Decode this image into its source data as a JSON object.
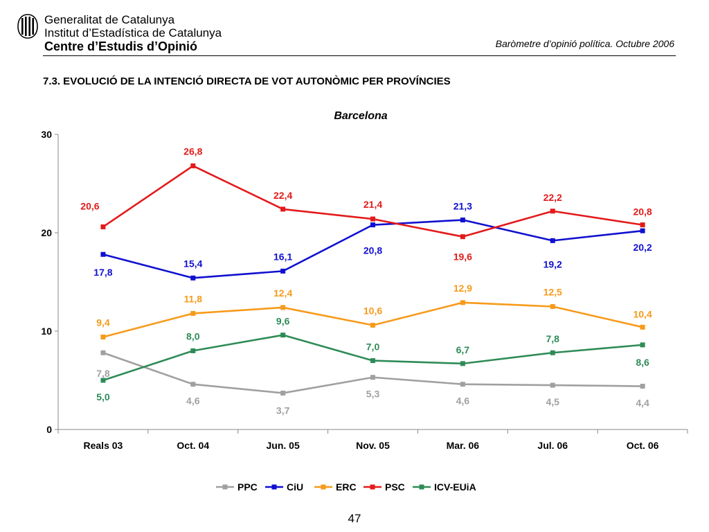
{
  "header": {
    "org_line_1": "Generalitat de Catalunya",
    "org_line_2": "Institut d’Estadística de Catalunya",
    "org_line_3": "Centre d’Estudis d’Opinió",
    "report_title": "Baròmetre d’opinió política. Octubre 2006"
  },
  "section_title": "7.3. EVOLUCIÓ DE LA INTENCIÓ DIRECTA DE VOT AUTONÒMIC PER PROVÍNCIES",
  "page_number": "47",
  "chart_data": {
    "type": "line",
    "title": "Barcelona",
    "xlabel": "",
    "ylabel": "",
    "categories": [
      "Reals 03",
      "Oct. 04",
      "Jun. 05",
      "Nov. 05",
      "Mar. 06",
      "Jul. 06",
      "Oct. 06"
    ],
    "ylim": [
      0,
      30
    ],
    "yticks": [
      "0",
      "10",
      "20",
      "30"
    ],
    "grid": false,
    "legend_placement": "bottom",
    "series": [
      {
        "name": "PPC",
        "color": "#a0a0a0",
        "values": [
          7.8,
          4.6,
          3.7,
          5.3,
          4.6,
          4.5,
          4.4
        ],
        "labels": [
          "7,8",
          "4,6",
          "3,7",
          "5,3",
          "4,6",
          "4,5",
          "4,4"
        ]
      },
      {
        "name": "CiU",
        "color": "#1010d0",
        "values": [
          17.8,
          15.4,
          16.1,
          20.8,
          21.3,
          19.2,
          20.2
        ],
        "labels": [
          "17,8",
          "15,4",
          "16,1",
          "20,8",
          "21,3",
          "19,2",
          "20,2"
        ]
      },
      {
        "name": "ERC",
        "color": "#f79a1a",
        "values": [
          9.4,
          11.8,
          12.4,
          10.6,
          12.9,
          12.5,
          10.4
        ],
        "labels": [
          "9,4",
          "11,8",
          "12,4",
          "10,6",
          "12,9",
          "12,5",
          "10,4"
        ]
      },
      {
        "name": "PSC",
        "color": "#e31a1a",
        "values": [
          20.6,
          26.8,
          22.4,
          21.4,
          19.6,
          22.2,
          20.8
        ],
        "labels": [
          "20,6",
          "26,8",
          "22,4",
          "21,4",
          "19,6",
          "22,2",
          "20,8"
        ]
      },
      {
        "name": "ICV-EUiA",
        "color": "#2e8b57",
        "values": [
          5.0,
          8.0,
          9.6,
          7.0,
          6.7,
          7.8,
          8.6
        ],
        "labels": [
          "5,0",
          "8,0",
          "9,6",
          "7,0",
          "6,7",
          "7,8",
          "8,6"
        ]
      }
    ]
  }
}
